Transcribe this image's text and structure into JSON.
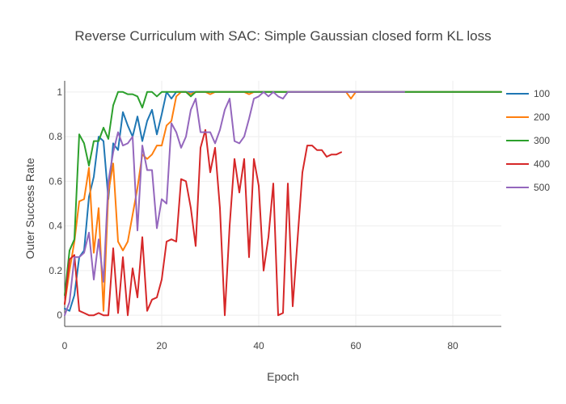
{
  "chart_data": {
    "type": "line",
    "title": "Reverse Curriculum with SAC: Simple Gaussian closed form KL loss",
    "xlabel": "Epoch",
    "ylabel": "Outer Success Rate",
    "xlim": [
      0,
      90
    ],
    "ylim": [
      -0.05,
      1.05
    ],
    "xticks": [
      0,
      20,
      40,
      60,
      80
    ],
    "yticks": [
      0,
      0.2,
      0.4,
      0.6,
      0.8,
      1
    ],
    "ytick_labels": [
      "0",
      "0.2",
      "0.4",
      "0.6",
      "0.8",
      "1"
    ],
    "grid": true,
    "legend_position": "right",
    "series": [
      {
        "name": "100",
        "color": "#1f77b4",
        "x": [
          0,
          1,
          2,
          3,
          4,
          5,
          6,
          7,
          8,
          9,
          10,
          11,
          12,
          13,
          14,
          15,
          16,
          17,
          18,
          19,
          20,
          21,
          22,
          23,
          24,
          25,
          26,
          27,
          28,
          29,
          30,
          31,
          32,
          33,
          34,
          35,
          36,
          37,
          38,
          39,
          40,
          41,
          42,
          43,
          44,
          45,
          46,
          47,
          48,
          49,
          50,
          51,
          52,
          53,
          54,
          55,
          56,
          57,
          58,
          59,
          60,
          61,
          62,
          63,
          64,
          65,
          66,
          67,
          68,
          69,
          70,
          71,
          72,
          73,
          74,
          75,
          76,
          77,
          78,
          79,
          80,
          81,
          82,
          83,
          84,
          85,
          86,
          87,
          88,
          89,
          90
        ],
        "y": [
          0.03,
          0.02,
          0.09,
          0.26,
          0.29,
          0.53,
          0.62,
          0.8,
          0.78,
          0.52,
          0.77,
          0.74,
          0.91,
          0.85,
          0.8,
          0.89,
          0.78,
          0.87,
          0.92,
          0.81,
          0.9,
          1.0,
          0.97,
          1.0,
          1.0,
          1.0,
          1.0,
          1.0,
          1.0,
          1.0,
          1.0,
          1.0,
          1.0,
          1.0,
          1.0,
          1.0,
          1.0,
          1.0,
          1.0,
          1.0,
          1.0,
          1.0,
          1.0,
          1.0,
          1.0,
          1.0,
          1.0,
          1.0,
          1.0,
          1.0,
          1.0,
          1.0,
          1.0,
          1.0,
          1.0,
          1.0,
          1.0,
          1.0,
          1.0,
          1.0,
          1.0,
          1.0,
          1.0,
          1.0,
          1.0,
          1.0,
          1.0,
          1.0,
          1.0,
          1.0,
          1.0,
          1.0,
          1.0,
          1.0,
          1.0,
          1.0,
          1.0,
          1.0,
          1.0,
          1.0,
          1.0,
          1.0,
          1.0,
          1.0,
          1.0,
          1.0,
          1.0,
          1.0,
          1.0,
          1.0,
          1.0
        ]
      },
      {
        "name": "200",
        "color": "#ff7f0e",
        "x": [
          0,
          1,
          2,
          3,
          4,
          5,
          6,
          7,
          8,
          9,
          10,
          11,
          12,
          13,
          14,
          15,
          16,
          17,
          18,
          19,
          20,
          21,
          22,
          23,
          24,
          25,
          26,
          27,
          28,
          29,
          30,
          31,
          32,
          33,
          34,
          35,
          36,
          37,
          38,
          39,
          40,
          41,
          42,
          43,
          44,
          45,
          46,
          47,
          48,
          49,
          50,
          51,
          52,
          53,
          54,
          55,
          56,
          57,
          58,
          59,
          60,
          61,
          62,
          63,
          64,
          65,
          66,
          67,
          68,
          69,
          70,
          71,
          72,
          73,
          74,
          75,
          76,
          77,
          78,
          79,
          80,
          81,
          82,
          83,
          84,
          85,
          86,
          87,
          88,
          89,
          90
        ],
        "y": [
          0.05,
          0.2,
          0.33,
          0.51,
          0.52,
          0.66,
          0.28,
          0.48,
          0.02,
          0.55,
          0.68,
          0.33,
          0.29,
          0.33,
          0.45,
          0.57,
          0.72,
          0.7,
          0.72,
          0.76,
          0.76,
          0.85,
          0.87,
          0.98,
          1.0,
          1.0,
          0.99,
          1.0,
          1.0,
          1.0,
          0.99,
          1.0,
          1.0,
          1.0,
          1.0,
          1.0,
          1.0,
          1.0,
          0.99,
          1.0,
          1.0,
          1.0,
          1.0,
          1.0,
          1.0,
          1.0,
          1.0,
          1.0,
          1.0,
          1.0,
          1.0,
          1.0,
          1.0,
          1.0,
          1.0,
          1.0,
          1.0,
          1.0,
          1.0,
          0.97,
          1.0,
          1.0,
          1.0,
          1.0,
          1.0,
          1.0,
          1.0,
          1.0,
          1.0,
          1.0,
          1.0,
          1.0,
          1.0,
          1.0,
          1.0,
          1.0,
          1.0,
          1.0,
          1.0,
          1.0,
          1.0,
          1.0,
          1.0,
          1.0,
          1.0,
          1.0,
          1.0,
          1.0,
          1.0,
          1.0,
          1.0
        ]
      },
      {
        "name": "300",
        "color": "#2ca02c",
        "x": [
          0,
          1,
          2,
          3,
          4,
          5,
          6,
          7,
          8,
          9,
          10,
          11,
          12,
          13,
          14,
          15,
          16,
          17,
          18,
          19,
          20,
          21,
          22,
          23,
          24,
          25,
          26,
          27,
          28,
          29,
          30,
          31,
          32,
          33,
          34,
          35,
          36,
          37,
          38,
          39,
          40,
          41,
          42,
          43,
          44,
          45,
          46,
          47,
          48,
          49,
          50,
          51,
          52,
          53,
          54,
          55,
          56,
          57,
          58,
          59,
          60,
          61,
          62,
          63,
          64,
          65,
          66,
          67,
          68,
          69,
          70,
          71,
          72,
          73,
          74,
          75,
          76,
          77,
          78,
          79,
          80,
          81,
          82,
          83,
          84,
          85,
          86,
          87,
          88,
          89,
          90
        ],
        "y": [
          0.09,
          0.29,
          0.34,
          0.81,
          0.77,
          0.67,
          0.78,
          0.78,
          0.84,
          0.79,
          0.94,
          1.0,
          1.0,
          0.99,
          0.99,
          0.98,
          0.93,
          1.0,
          1.0,
          0.98,
          1.0,
          1.0,
          1.0,
          1.0,
          1.0,
          1.0,
          0.98,
          1.0,
          1.0,
          1.0,
          1.0,
          1.0,
          1.0,
          1.0,
          1.0,
          1.0,
          1.0,
          1.0,
          1.0,
          1.0,
          1.0,
          1.0,
          1.0,
          1.0,
          1.0,
          1.0,
          1.0,
          1.0,
          1.0,
          1.0,
          1.0,
          1.0,
          1.0,
          1.0,
          1.0,
          1.0,
          1.0,
          1.0,
          1.0,
          1.0,
          1.0,
          1.0,
          1.0,
          1.0,
          1.0,
          1.0,
          1.0,
          1.0,
          1.0,
          1.0,
          1.0,
          1.0,
          1.0,
          1.0,
          1.0,
          1.0,
          1.0,
          1.0,
          1.0,
          1.0,
          1.0,
          1.0,
          1.0,
          1.0,
          1.0,
          1.0,
          1.0,
          1.0,
          1.0,
          1.0,
          1.0
        ]
      },
      {
        "name": "400",
        "color": "#d62728",
        "x": [
          0,
          1,
          2,
          3,
          4,
          5,
          6,
          7,
          8,
          9,
          10,
          11,
          12,
          13,
          14,
          15,
          16,
          17,
          18,
          19,
          20,
          21,
          22,
          23,
          24,
          25,
          26,
          27,
          28,
          29,
          30,
          31,
          32,
          33,
          34,
          35,
          36,
          37,
          38,
          39,
          40,
          41,
          42,
          43,
          44,
          45,
          46,
          47,
          48,
          49,
          50,
          51,
          52,
          53,
          54,
          55,
          56,
          57
        ],
        "y": [
          0.05,
          0.25,
          0.27,
          0.02,
          0.01,
          0.0,
          0.0,
          0.01,
          0.0,
          0.0,
          0.3,
          0.01,
          0.26,
          0.0,
          0.21,
          0.08,
          0.35,
          0.02,
          0.07,
          0.08,
          0.16,
          0.33,
          0.34,
          0.33,
          0.61,
          0.6,
          0.48,
          0.31,
          0.75,
          0.83,
          0.64,
          0.75,
          0.48,
          0.0,
          0.4,
          0.7,
          0.55,
          0.7,
          0.26,
          0.7,
          0.58,
          0.2,
          0.35,
          0.59,
          0.0,
          0.01,
          0.59,
          0.04,
          0.34,
          0.64,
          0.76,
          0.76,
          0.74,
          0.74,
          0.71,
          0.72,
          0.72,
          0.73
        ]
      },
      {
        "name": "500",
        "color": "#9467bd",
        "x": [
          0,
          1,
          2,
          3,
          4,
          5,
          6,
          7,
          8,
          9,
          10,
          11,
          12,
          13,
          14,
          15,
          16,
          17,
          18,
          19,
          20,
          21,
          22,
          23,
          24,
          25,
          26,
          27,
          28,
          29,
          30,
          31,
          32,
          33,
          34,
          35,
          36,
          37,
          38,
          39,
          40,
          41,
          42,
          43,
          44,
          45,
          46,
          47,
          48,
          49,
          50,
          51,
          52,
          53,
          54,
          55,
          56,
          57,
          58,
          59,
          60,
          61,
          62,
          63,
          64,
          65,
          66,
          67,
          68,
          69,
          70
        ],
        "y": [
          0.0,
          0.06,
          0.26,
          0.26,
          0.28,
          0.37,
          0.16,
          0.34,
          0.15,
          0.6,
          0.73,
          0.82,
          0.76,
          0.77,
          0.8,
          0.38,
          0.76,
          0.65,
          0.65,
          0.39,
          0.52,
          0.5,
          0.86,
          0.82,
          0.75,
          0.8,
          0.92,
          0.97,
          0.82,
          0.82,
          0.82,
          0.77,
          0.83,
          0.92,
          0.97,
          0.78,
          0.77,
          0.8,
          0.88,
          0.97,
          0.98,
          1.0,
          0.98,
          1.0,
          0.98,
          0.97,
          1.0,
          1.0,
          1.0,
          1.0,
          1.0,
          1.0,
          1.0,
          1.0,
          1.0,
          1.0,
          1.0,
          1.0,
          1.0,
          1.0,
          1.0,
          1.0,
          1.0,
          1.0,
          1.0,
          1.0,
          1.0,
          1.0,
          1.0,
          1.0,
          1.0
        ]
      }
    ]
  }
}
